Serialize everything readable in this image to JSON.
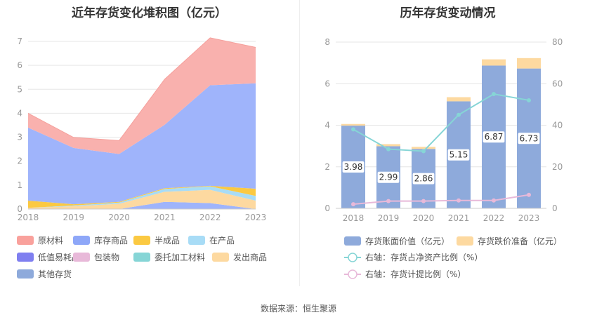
{
  "chart_data": [
    {
      "type": "area",
      "stacked": true,
      "title": "近年存货变化堆积图（亿元）",
      "categories": [
        "2018",
        "2019",
        "2020",
        "2021",
        "2022",
        "2023"
      ],
      "ylim": [
        0,
        7
      ],
      "yticks": [
        "0",
        "1",
        "2",
        "3",
        "4",
        "5",
        "6",
        "7"
      ],
      "grid": true,
      "legend_position": "bottom",
      "series": [
        {
          "name": "其他存货",
          "color": "#8eaadb",
          "values": [
            0,
            0,
            0,
            0,
            0,
            0
          ]
        },
        {
          "name": "发出商品",
          "color": "#fdd9a0",
          "values": [
            0.05,
            0.12,
            0.22,
            0.42,
            0.55,
            0.35
          ]
        },
        {
          "name": "委托加工材料",
          "color": "#86d5d6",
          "values": [
            0,
            0,
            0,
            0,
            0,
            0
          ]
        },
        {
          "name": "包装物",
          "color": "#e8b9d9",
          "values": [
            0,
            0,
            0,
            0,
            0,
            0
          ]
        },
        {
          "name": "低值易耗品",
          "color": "#8080f0",
          "values": [
            0,
            0,
            0,
            0,
            0,
            0
          ]
        },
        {
          "name": "在产品",
          "color": "#a8dcf6",
          "values": [
            0,
            0.03,
            0.05,
            0.12,
            0.15,
            0.2
          ]
        },
        {
          "name": "半成品",
          "color": "#fbc942",
          "values": [
            0.3,
            0.05,
            0.03,
            0.03,
            0.02,
            0.3
          ]
        },
        {
          "name": "库存商品",
          "color": "#9fb4fb",
          "values": [
            3.05,
            2.35,
            2.0,
            2.65,
            4.2,
            4.4
          ]
        },
        {
          "name": "原材料",
          "color": "#f9b1ae",
          "values": [
            0.6,
            0.44,
            0.56,
            1.9,
            1.98,
            1.5
          ]
        },
        {
          "name": "base_dummy",
          "color": "#9fb4fb",
          "values": [
            0,
            0,
            0,
            0.3,
            0.25,
            0
          ]
        }
      ],
      "legend": [
        {
          "name": "原材料",
          "color": "#f9a19c"
        },
        {
          "name": "库存商品",
          "color": "#8ea7f8"
        },
        {
          "name": "半成品",
          "color": "#fbc942"
        },
        {
          "name": "在产品",
          "color": "#a8dcf6"
        },
        {
          "name": "低值易耗品",
          "color": "#7f7ff0"
        },
        {
          "name": "包装物",
          "color": "#e8b9d9"
        },
        {
          "name": "委托加工材料",
          "color": "#86d5d6"
        },
        {
          "name": "发出商品",
          "color": "#fdd9a0"
        },
        {
          "name": "其他存货",
          "color": "#8eaadb"
        }
      ]
    },
    {
      "type": "bar",
      "stacked": true,
      "title": "历年存货变动情况",
      "categories": [
        "2018",
        "2019",
        "2020",
        "2021",
        "2022",
        "2023"
      ],
      "ylim": [
        0,
        8
      ],
      "yticks": [
        "0",
        "2",
        "4",
        "6",
        "8"
      ],
      "y2lim": [
        0,
        80
      ],
      "y2ticks": [
        "0",
        "20",
        "40",
        "60",
        "80"
      ],
      "grid": true,
      "legend_position": "bottom",
      "series": [
        {
          "name": "存货账面价值（亿元）",
          "color": "#8eaadb",
          "values": [
            3.98,
            2.99,
            2.86,
            5.15,
            6.87,
            6.73
          ],
          "labels": [
            "3.98",
            "2.99",
            "2.86",
            "5.15",
            "6.87",
            "6.73"
          ]
        },
        {
          "name": "存货跌价准备（亿元）",
          "color": "#fdd9a0",
          "values": [
            0.08,
            0.1,
            0.1,
            0.2,
            0.3,
            0.5
          ]
        }
      ],
      "lines": [
        {
          "name": "右轴：存货占净资产比例（%）",
          "color": "#86d5d6",
          "axis": "right",
          "values": [
            38,
            28.5,
            27.5,
            45,
            55,
            52
          ]
        },
        {
          "name": "右轴：存货计提比例（%）",
          "color": "#e8b9d9",
          "axis": "right",
          "values": [
            2,
            3.5,
            3.5,
            3.8,
            3.8,
            6.5
          ]
        }
      ]
    }
  ],
  "source": "数据来源：恒生聚源"
}
